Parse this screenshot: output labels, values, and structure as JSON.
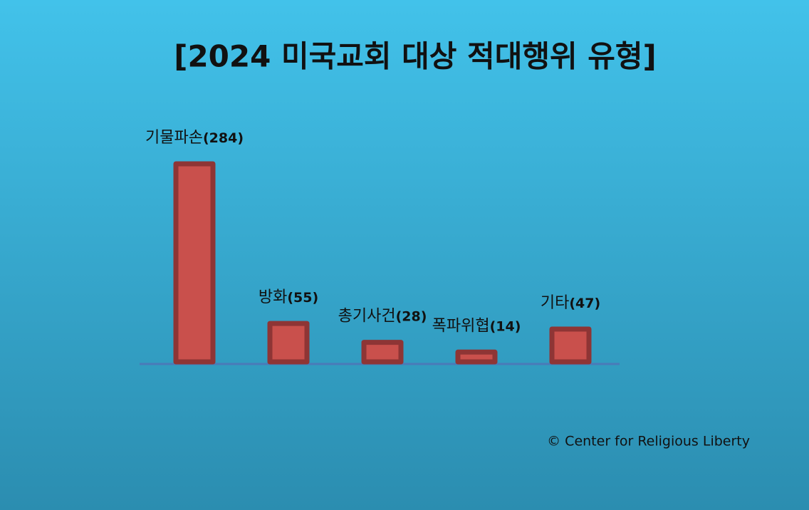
{
  "chart_data": {
    "type": "bar",
    "title": "[2024 미국교회 대상 적대행위 유형]",
    "categories": [
      "기물파손",
      "방화",
      "총기사건",
      "폭파위협",
      "기타"
    ],
    "values": [
      284,
      55,
      28,
      14,
      47
    ],
    "value_labels": [
      "(284)",
      "(55)",
      "(28)",
      "(14)",
      "(47)"
    ],
    "color": "#c9504c",
    "edge_color": "#8e3535",
    "baseline_color": "#4a7ab8",
    "credit": "© Center for Religious Liberty"
  }
}
